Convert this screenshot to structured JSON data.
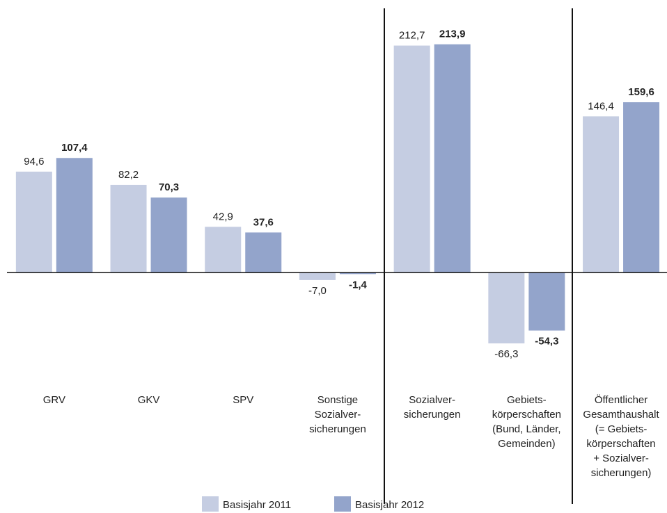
{
  "chart_data": {
    "type": "bar",
    "categories": [
      "GRV",
      "GKV",
      "SPV",
      "Sonstige\nSozialver-\nsicherungen",
      "Sozialver-\nsicherungen",
      "Gebiets-\nkörperschaften\n(Bund, Länder,\nGemeinden)",
      "Öffentlicher\nGesamthaushalt\n(= Gebiets-\nkörperschaften\n+ Sozialver-\nsicherungen)"
    ],
    "series": [
      {
        "name": "Basisjahr 2011",
        "color": "#c5cde2",
        "values": [
          94.6,
          82.2,
          42.9,
          -7.0,
          212.7,
          -66.3,
          146.4
        ],
        "value_labels": [
          "94,6",
          "82,2",
          "42,9",
          "-7,0",
          "212,7",
          "-66,3",
          "146,4"
        ]
      },
      {
        "name": "Basisjahr 2012",
        "color": "#93a4cb",
        "values": [
          107.4,
          70.3,
          37.6,
          -1.4,
          213.9,
          -54.3,
          159.6
        ],
        "value_labels": [
          "107,4",
          "70,3",
          "37,6",
          "-1,4",
          "213,9",
          "-54,3",
          "159,6"
        ]
      }
    ],
    "ylim": [
      -80,
      230
    ]
  }
}
